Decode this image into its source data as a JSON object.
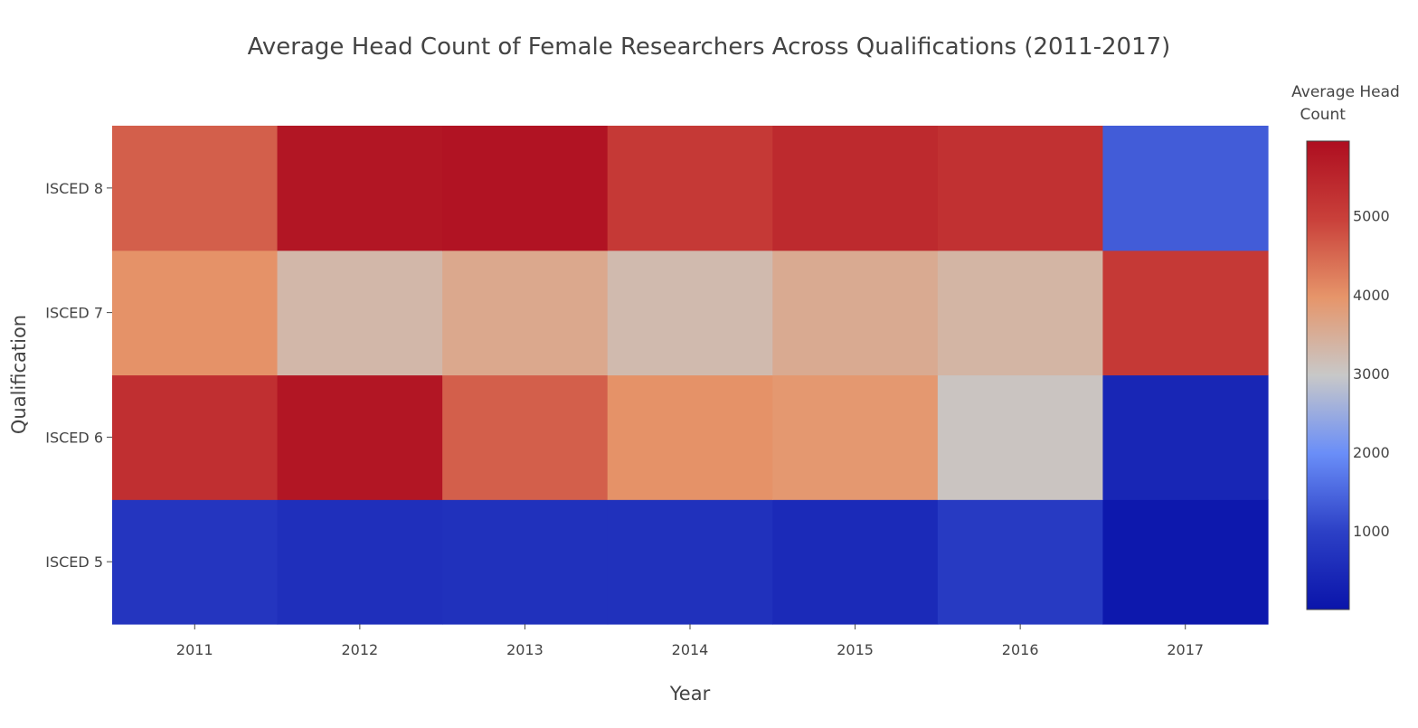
{
  "chart_data": {
    "type": "heatmap",
    "title": "Average Head Count of Female Researchers Across Qualifications (2011-2017)",
    "xlabel": "Year",
    "ylabel": "Qualification",
    "x": [
      "2011",
      "2012",
      "2013",
      "2014",
      "2015",
      "2016",
      "2017"
    ],
    "y": [
      "ISCED 5",
      "ISCED 6",
      "ISCED 7",
      "ISCED 8"
    ],
    "z": [
      [
        750,
        600,
        650,
        650,
        500,
        850,
        100
      ],
      [
        5300,
        5800,
        4600,
        4000,
        3900,
        3050,
        400
      ],
      [
        4000,
        3300,
        3600,
        3250,
        3550,
        3350,
        5100
      ],
      [
        4600,
        5800,
        5850,
        5100,
        5400,
        5250,
        1350
      ]
    ],
    "zrange": [
      0,
      5950
    ],
    "colorscale": "coolwarm",
    "colorscale_stops": [
      "#0a14aa",
      "#2c40c6",
      "#6a8ef8",
      "#c8c8c8",
      "#e6956a",
      "#c9403a",
      "#ae0e20"
    ],
    "colorbar": {
      "title_lines": [
        "Average Head",
        " Count"
      ],
      "tickvals": [
        1000,
        2000,
        3000,
        4000,
        5000
      ],
      "ticktext": [
        "1000",
        "2000",
        "3000",
        "4000",
        "5000"
      ]
    }
  }
}
